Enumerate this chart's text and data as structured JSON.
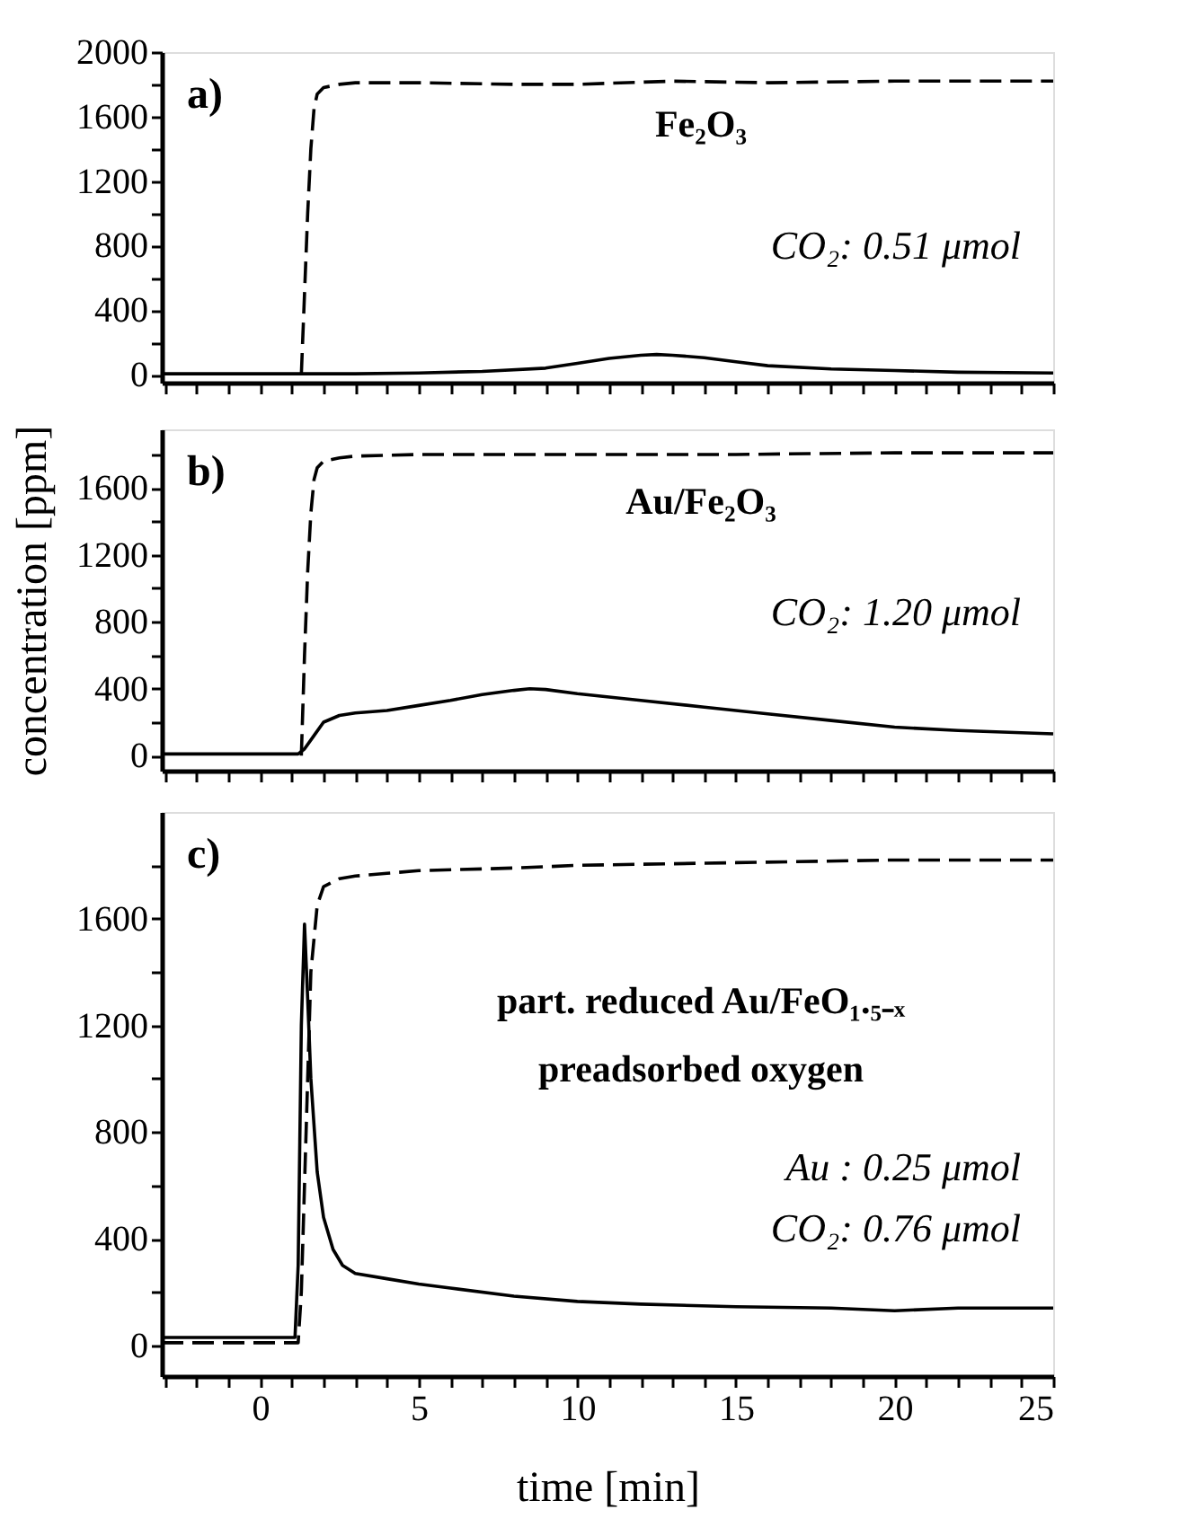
{
  "chart_data": [
    {
      "type": "line",
      "xlim": [
        -3.1,
        25
      ],
      "ylim": [
        -50,
        2000
      ],
      "tick_labels": "y",
      "grid": false,
      "xticks": [
        {
          "value": -3,
          "label": null
        },
        {
          "value": -2,
          "label": null
        },
        {
          "value": -1,
          "label": null
        },
        0,
        {
          "value": 1,
          "label": null
        },
        {
          "value": 2,
          "label": null
        },
        {
          "value": 3,
          "label": null
        },
        {
          "value": 4,
          "label": null
        },
        5,
        {
          "value": 6,
          "label": null
        },
        {
          "value": 7,
          "label": null
        },
        {
          "value": 8,
          "label": null
        },
        {
          "value": 9,
          "label": null
        },
        10,
        {
          "value": 11,
          "label": null
        },
        {
          "value": 12,
          "label": null
        },
        {
          "value": 13,
          "label": null
        },
        {
          "value": 14,
          "label": null
        },
        15,
        {
          "value": 16,
          "label": null
        },
        {
          "value": 17,
          "label": null
        },
        {
          "value": 18,
          "label": null
        },
        {
          "value": 19,
          "label": null
        },
        20,
        {
          "value": 21,
          "label": null
        },
        {
          "value": 22,
          "label": null
        },
        {
          "value": 23,
          "label": null
        },
        {
          "value": 24,
          "label": null
        },
        25
      ],
      "yticks": [
        0,
        {
          "value": 200,
          "label": null
        },
        400,
        {
          "value": 600,
          "label": null
        },
        800,
        {
          "value": 1000,
          "label": null
        },
        1200,
        {
          "value": 1400,
          "label": null
        },
        1600,
        {
          "value": 1800,
          "label": null
        },
        2000
      ],
      "annotations": [
        "a)",
        "Fe₂O₃",
        "CO₂: 0.51 μmol"
      ],
      "series": [
        {
          "color": "#000000",
          "line_style": "solid",
          "x": [
            -3.1,
            0,
            1.3,
            3,
            5,
            7,
            9,
            10,
            11,
            12,
            12.5,
            13,
            14,
            15,
            16,
            18,
            20,
            22,
            25
          ],
          "values": [
            5,
            5,
            5,
            5,
            10,
            20,
            40,
            70,
            100,
            120,
            125,
            120,
            105,
            80,
            55,
            35,
            25,
            15,
            10
          ]
        },
        {
          "color": "#000000",
          "line_style": "dashed",
          "x": [
            1.3,
            1.4,
            1.5,
            1.6,
            1.7,
            1.8,
            2,
            2.5,
            3,
            5,
            8,
            10,
            13,
            16,
            20,
            25
          ],
          "values": [
            0,
            500,
            1000,
            1400,
            1650,
            1740,
            1780,
            1800,
            1810,
            1810,
            1800,
            1800,
            1820,
            1810,
            1820,
            1820
          ]
        }
      ]
    },
    {
      "type": "line",
      "xlim": [
        -3.1,
        25
      ],
      "ylim": [
        -90,
        1950
      ],
      "tick_labels": "y",
      "grid": false,
      "ylabel": "concentration [ppm]",
      "xticks": [
        {
          "value": -3,
          "label": null
        },
        {
          "value": -2,
          "label": null
        },
        {
          "value": -1,
          "label": null
        },
        0,
        {
          "value": 1,
          "label": null
        },
        {
          "value": 2,
          "label": null
        },
        {
          "value": 3,
          "label": null
        },
        {
          "value": 4,
          "label": null
        },
        5,
        {
          "value": 6,
          "label": null
        },
        {
          "value": 7,
          "label": null
        },
        {
          "value": 8,
          "label": null
        },
        {
          "value": 9,
          "label": null
        },
        10,
        {
          "value": 11,
          "label": null
        },
        {
          "value": 12,
          "label": null
        },
        {
          "value": 13,
          "label": null
        },
        {
          "value": 14,
          "label": null
        },
        15,
        {
          "value": 16,
          "label": null
        },
        {
          "value": 17,
          "label": null
        },
        {
          "value": 18,
          "label": null
        },
        {
          "value": 19,
          "label": null
        },
        20,
        {
          "value": 21,
          "label": null
        },
        {
          "value": 22,
          "label": null
        },
        {
          "value": 23,
          "label": null
        },
        {
          "value": 24,
          "label": null
        },
        25
      ],
      "yticks": [
        0,
        {
          "value": 200,
          "label": null
        },
        400,
        {
          "value": 600,
          "label": null
        },
        800,
        {
          "value": 1000,
          "label": null
        },
        1200,
        {
          "value": 1400,
          "label": null
        },
        1600,
        {
          "value": 1800,
          "label": null
        }
      ],
      "annotations": [
        "b)",
        "Au/Fe₂O₃",
        "CO₂: 1.20 μmol"
      ],
      "series": [
        {
          "color": "#000000",
          "line_style": "solid",
          "x": [
            -3.1,
            0,
            1.2,
            1.4,
            1.7,
            2,
            2.5,
            3,
            4,
            5,
            6,
            7,
            8,
            8.5,
            9,
            10,
            12,
            14,
            16,
            18,
            20,
            22,
            25
          ],
          "values": [
            10,
            10,
            10,
            40,
            120,
            200,
            240,
            255,
            270,
            300,
            330,
            365,
            390,
            400,
            395,
            370,
            330,
            290,
            250,
            210,
            170,
            150,
            130
          ]
        },
        {
          "color": "#000000",
          "line_style": "dashed",
          "x": [
            1.3,
            1.4,
            1.5,
            1.6,
            1.7,
            1.8,
            2,
            2.5,
            3,
            5,
            10,
            15,
            20,
            25
          ],
          "values": [
            0,
            600,
            1100,
            1450,
            1650,
            1720,
            1760,
            1780,
            1790,
            1800,
            1800,
            1800,
            1810,
            1810
          ]
        }
      ]
    },
    {
      "type": "line",
      "xlim": [
        -3.1,
        25
      ],
      "ylim": [
        -115,
        2000
      ],
      "grid": false,
      "xlabel": "time [min]",
      "xticks": [
        {
          "value": -3,
          "label": null
        },
        {
          "value": -2,
          "label": null
        },
        {
          "value": -1,
          "label": null
        },
        0,
        {
          "value": 1,
          "label": null
        },
        {
          "value": 2,
          "label": null
        },
        {
          "value": 3,
          "label": null
        },
        {
          "value": 4,
          "label": null
        },
        5,
        {
          "value": 6,
          "label": null
        },
        {
          "value": 7,
          "label": null
        },
        {
          "value": 8,
          "label": null
        },
        {
          "value": 9,
          "label": null
        },
        10,
        {
          "value": 11,
          "label": null
        },
        {
          "value": 12,
          "label": null
        },
        {
          "value": 13,
          "label": null
        },
        {
          "value": 14,
          "label": null
        },
        15,
        {
          "value": 16,
          "label": null
        },
        {
          "value": 17,
          "label": null
        },
        {
          "value": 18,
          "label": null
        },
        {
          "value": 19,
          "label": null
        },
        20,
        {
          "value": 21,
          "label": null
        },
        {
          "value": 22,
          "label": null
        },
        {
          "value": 23,
          "label": null
        },
        {
          "value": 24,
          "label": null
        },
        25
      ],
      "yticks": [
        0,
        {
          "value": 200,
          "label": null
        },
        400,
        {
          "value": 600,
          "label": null
        },
        800,
        {
          "value": 1000,
          "label": null
        },
        1200,
        {
          "value": 1400,
          "label": null
        },
        1600,
        {
          "value": 1800,
          "label": null
        }
      ],
      "annotations": [
        "c)",
        "part. reduced Au/FeO₁.₅₋ₓ",
        "preadsorbed oxygen",
        "Au  : 0.25 μmol",
        "CO₂: 0.76 μmol"
      ],
      "series": [
        {
          "color": "#000000",
          "line_style": "solid",
          "x": [
            -3.1,
            0,
            1.1,
            1.2,
            1.3,
            1.4,
            1.5,
            1.6,
            1.8,
            2,
            2.3,
            2.6,
            3,
            4,
            5,
            6,
            8,
            10,
            12,
            15,
            18,
            20,
            22,
            25
          ],
          "values": [
            30,
            30,
            30,
            300,
            1200,
            1580,
            1300,
            1000,
            650,
            480,
            360,
            300,
            270,
            250,
            230,
            215,
            185,
            165,
            155,
            145,
            140,
            130,
            140,
            140
          ]
        },
        {
          "color": "#000000",
          "line_style": "dashed",
          "x": [
            -3.1,
            0,
            1.2,
            1.3,
            1.4,
            1.5,
            1.6,
            1.8,
            2,
            2.5,
            3,
            4,
            5,
            8,
            10,
            15,
            20,
            25
          ],
          "values": [
            10,
            10,
            10,
            200,
            600,
            1000,
            1400,
            1650,
            1720,
            1750,
            1760,
            1770,
            1780,
            1790,
            1800,
            1810,
            1820,
            1820
          ]
        }
      ]
    }
  ]
}
